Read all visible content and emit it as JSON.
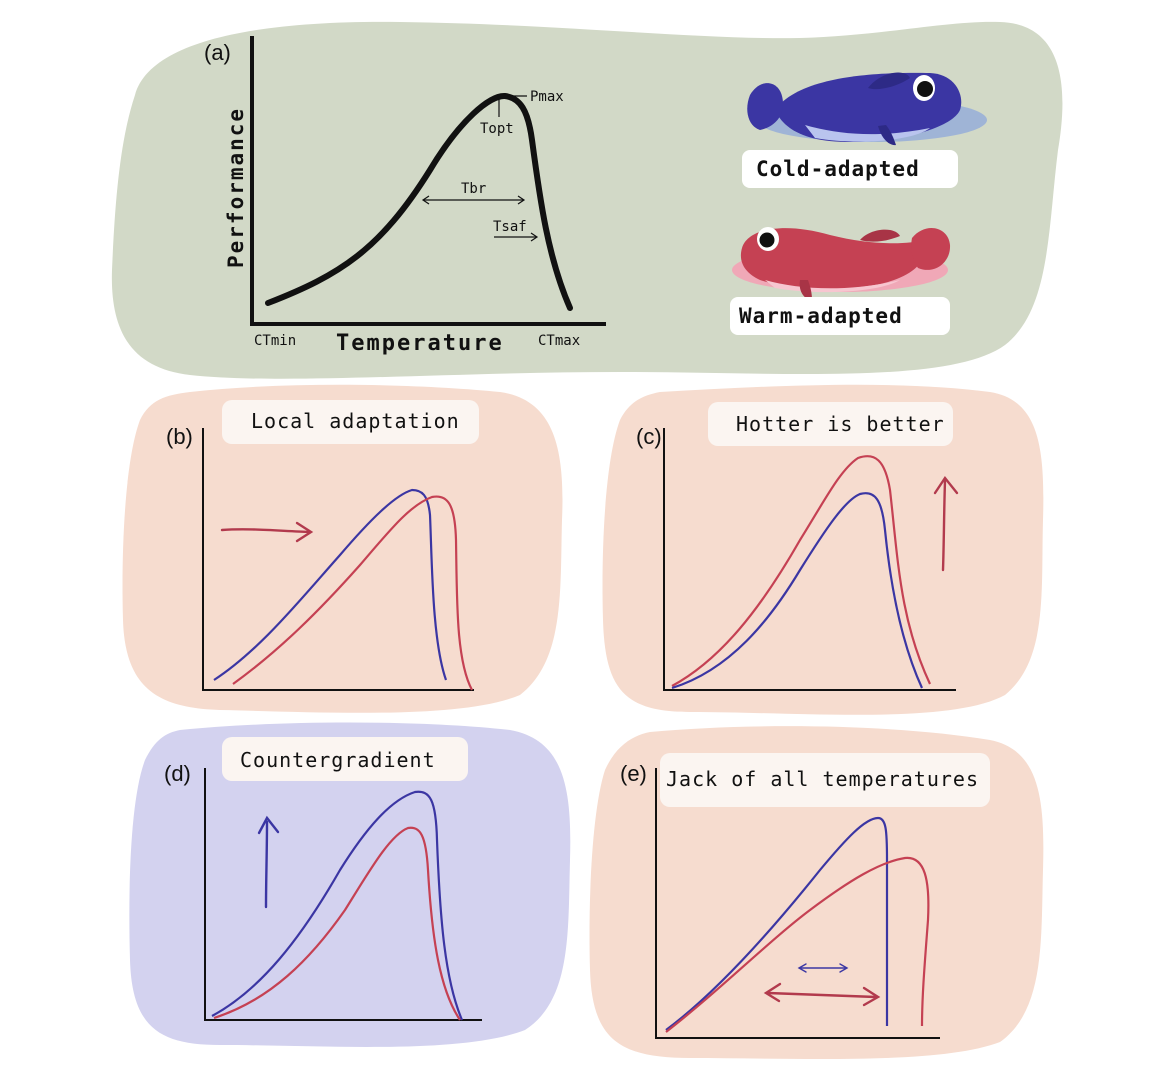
{
  "panel_a": {
    "letter": "(a)",
    "ylabel": "Performance",
    "xlabel": "Temperature",
    "ctmin": "CTmin",
    "ctmax": "CTmax",
    "pmax": "Pmax",
    "topt": "Topt",
    "tbr": "Tbr",
    "tsaf": "Tsaf",
    "legend_cold": "Cold-adapted",
    "legend_warm": "Warm-adapted"
  },
  "panel_b": {
    "letter": "(b)",
    "title": "Local adaptation"
  },
  "panel_c": {
    "letter": "(c)",
    "title": "Hotter is better"
  },
  "panel_d": {
    "letter": "(d)",
    "title": "Countergradient"
  },
  "panel_e": {
    "letter": "(e)",
    "title": "Jack of all temperatures"
  },
  "colors": {
    "panel_a_bg": "#d2d9c7",
    "panel_orange_bg": "#f6dccf",
    "panel_d_bg": "#d3d2ef",
    "cold": "#3b36a3",
    "warm": "#c54153",
    "label_bg": "#fbf5f1"
  },
  "icons": {
    "cold_fish": "blue-fish-icon",
    "warm_fish": "red-fish-icon"
  }
}
